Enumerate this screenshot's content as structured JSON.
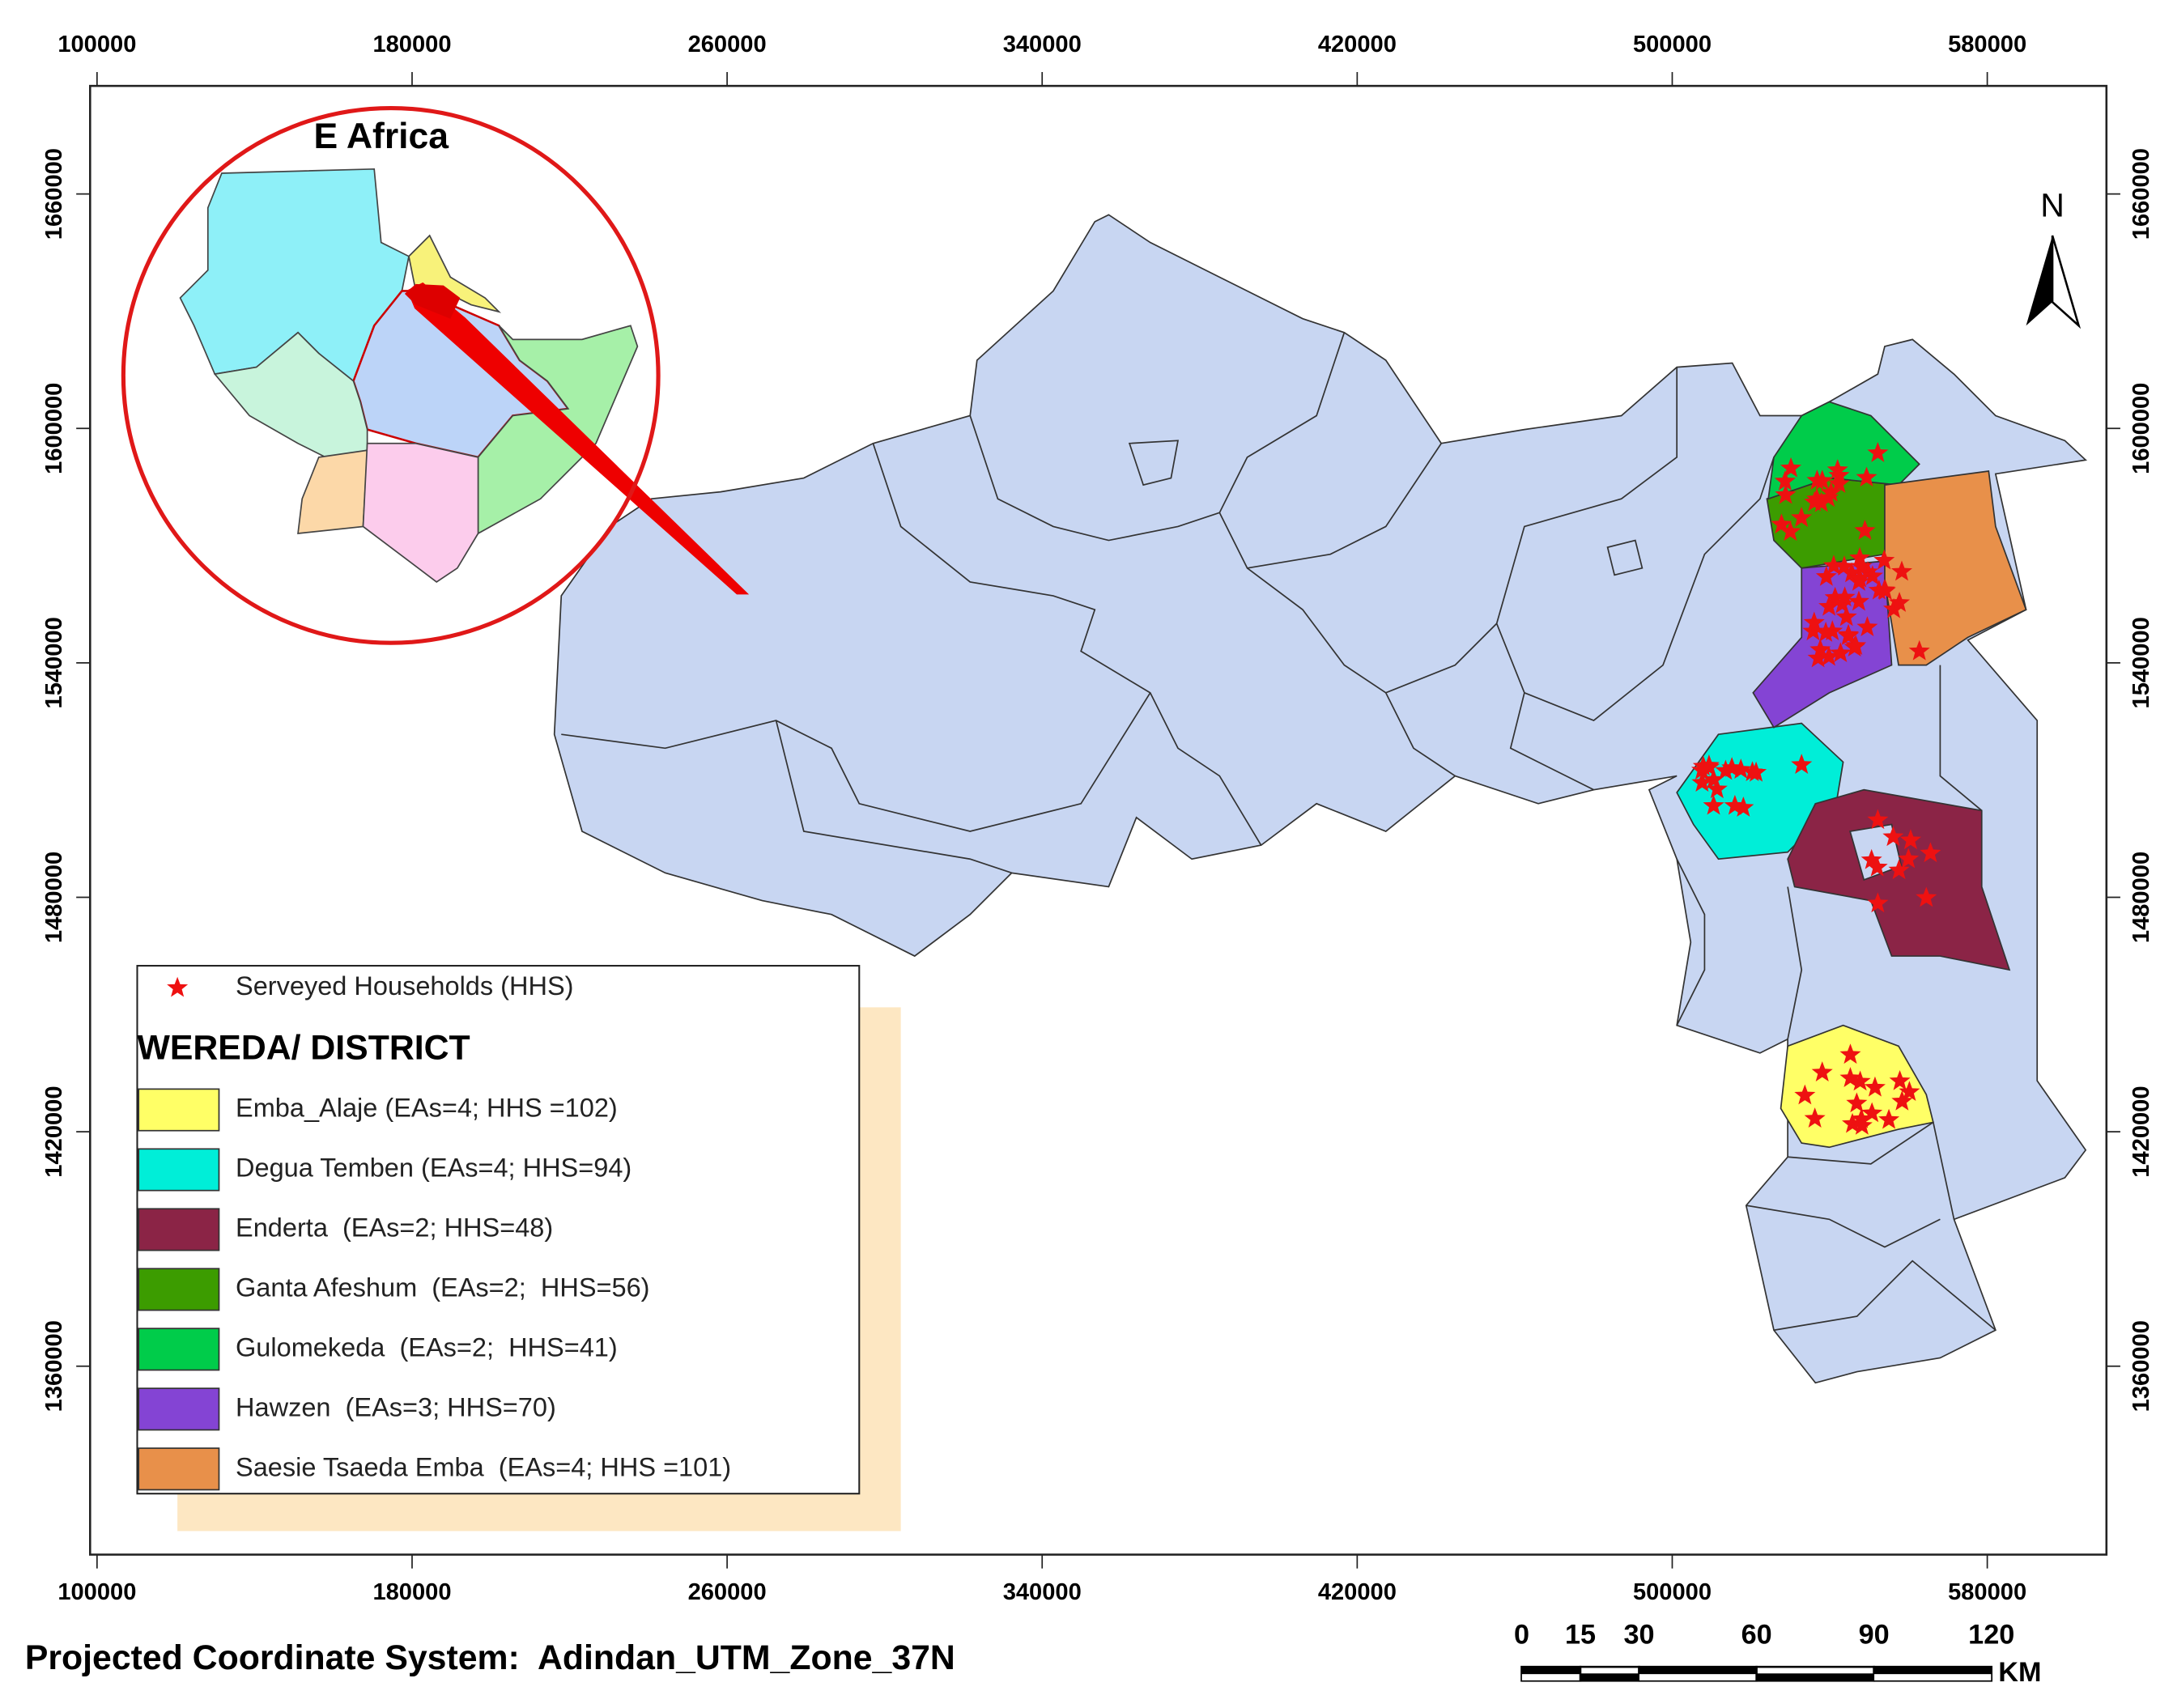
{
  "map": {
    "xticks": [
      100000,
      180000,
      260000,
      340000,
      420000,
      500000,
      580000
    ],
    "yticks": [
      1660000,
      1600000,
      1540000,
      1480000,
      1420000,
      1360000
    ],
    "inset_title": "E Africa",
    "north": "N",
    "legend": {
      "points": "Serveyed Households (HHS)",
      "title": "WEREDA/ DISTRICT",
      "items": [
        {
          "label": "Emba_Alaje (EAs=4; HHS =102)",
          "color": "#ffff66"
        },
        {
          "label": "Degua Temben (EAs=4; HHS=94)",
          "color": "#00eed8"
        },
        {
          "label": "Enderta  (EAs=2; HHS=48)",
          "color": "#8b2446"
        },
        {
          "label": "Ganta Afeshum  (EAs=2;  HHS=56)",
          "color": "#3c9c00"
        },
        {
          "label": "Gulomekeda  (EAs=2;  HHS=41)",
          "color": "#00cc4a"
        },
        {
          "label": "Hawzen  (EAs=3; HHS=70)",
          "color": "#8444d4"
        },
        {
          "label": "Saesie Tsaeda Emba  (EAs=4; HHS =101)",
          "color": "#e8904a"
        }
      ]
    },
    "scale_bar": {
      "ticks": [
        0,
        15,
        30,
        60,
        90,
        120
      ],
      "unit": "KM"
    },
    "footer": "Projected Coordinate System:  Adindan_UTM_Zone_37N"
  }
}
